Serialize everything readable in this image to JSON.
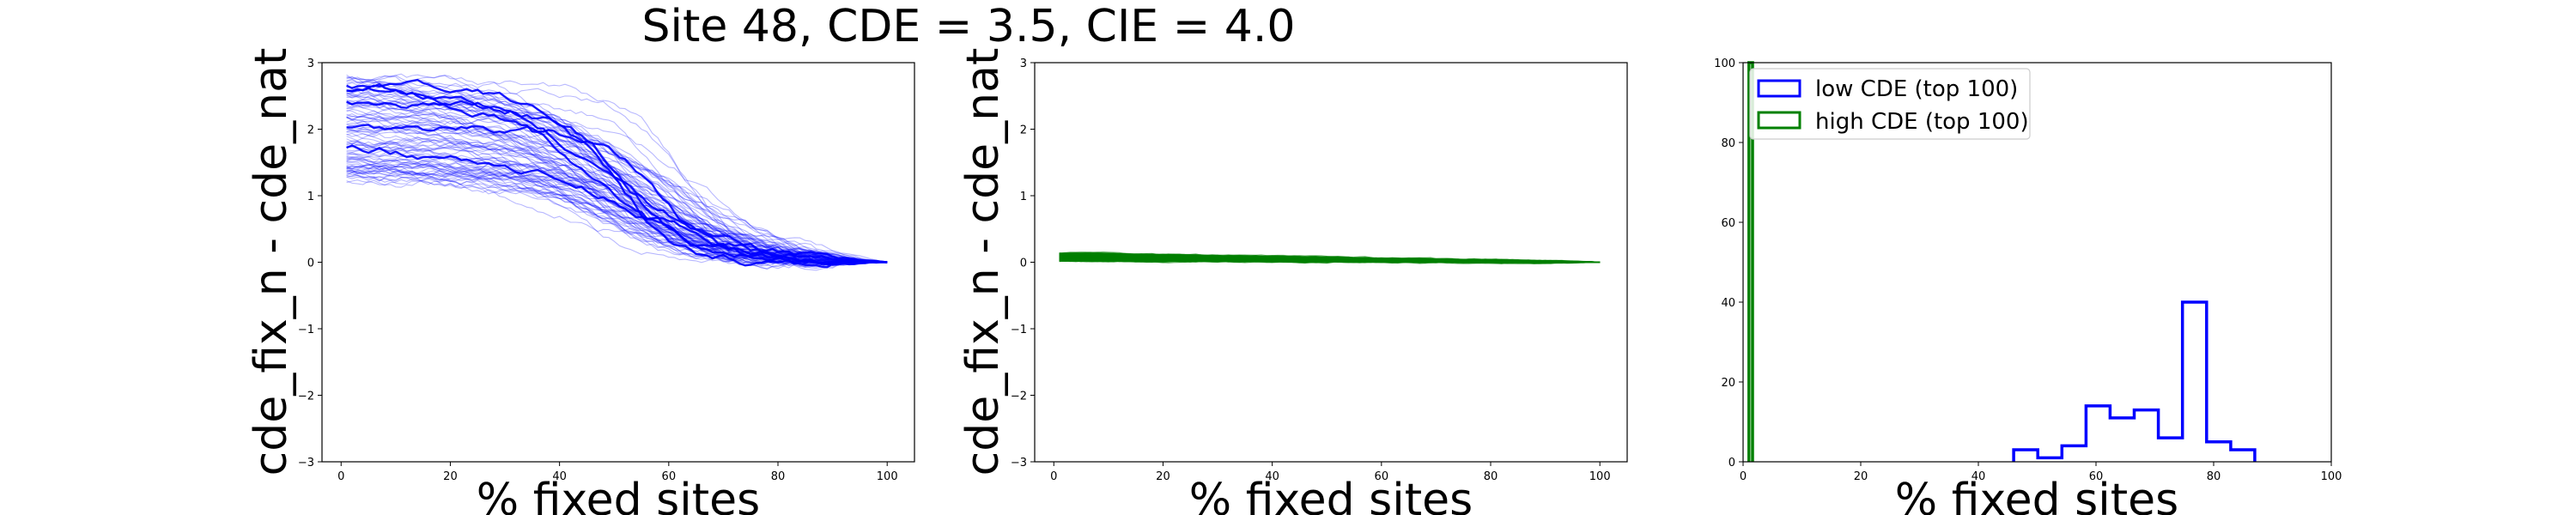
{
  "figure": {
    "suptitle": "Site 48, CDE = 3.5, CIE = 4.0"
  },
  "chart_data": [
    {
      "type": "line",
      "panel": "left",
      "title": "",
      "xlabel": "% fixed sites",
      "ylabel": "cde_fix_n - cde_nat",
      "xlim": [
        -3.5,
        105
      ],
      "ylim": [
        -3,
        3
      ],
      "xticks": [
        "0",
        "20",
        "40",
        "60",
        "80",
        "100"
      ],
      "yticks": [
        "−3",
        "−2",
        "−1",
        "0",
        "1",
        "2",
        "3"
      ],
      "color": "#0000ff",
      "series_count": 100,
      "start_range": [
        1.2,
        2.8
      ],
      "drop_center_range": [
        42,
        66
      ],
      "end_value": 0,
      "emphasized_traces": 6
    },
    {
      "type": "line",
      "panel": "middle",
      "title": "",
      "xlabel": "% fixed sites",
      "ylabel": "cde_fix_n - cde_nat",
      "xlim": [
        -3.5,
        105
      ],
      "ylim": [
        -3,
        3
      ],
      "xticks": [
        "0",
        "20",
        "40",
        "60",
        "80",
        "100"
      ],
      "yticks": [
        "−3",
        "−2",
        "−1",
        "0",
        "1",
        "2",
        "3"
      ],
      "color": "#008000",
      "series_count": 100,
      "start_range": [
        0.02,
        0.14
      ],
      "end_value": 0
    },
    {
      "type": "bar",
      "subtype": "step-histogram",
      "panel": "right",
      "title": "",
      "xlabel": "% fixed sites",
      "ylabel": "",
      "xlim": [
        0,
        100
      ],
      "ylim": [
        0,
        100
      ],
      "xticks": [
        "0",
        "20",
        "40",
        "60",
        "80",
        "100"
      ],
      "yticks": [
        "0",
        "20",
        "40",
        "60",
        "80",
        "100"
      ],
      "legend_position": "upper-left",
      "series": [
        {
          "name": "low CDE (top 100)",
          "color": "#0000ff",
          "bin_edges": [
            46,
            50.1,
            54.2,
            58.3,
            62.4,
            66.5,
            70.6,
            74.7,
            78.8,
            82.9,
            87
          ],
          "counts": [
            3,
            1,
            4,
            14,
            11,
            13,
            6,
            40,
            5,
            3
          ]
        },
        {
          "name": "high CDE (top 100)",
          "color": "#008000",
          "bin_edges": [
            1.0,
            1.6
          ],
          "counts": [
            100
          ]
        }
      ]
    }
  ]
}
